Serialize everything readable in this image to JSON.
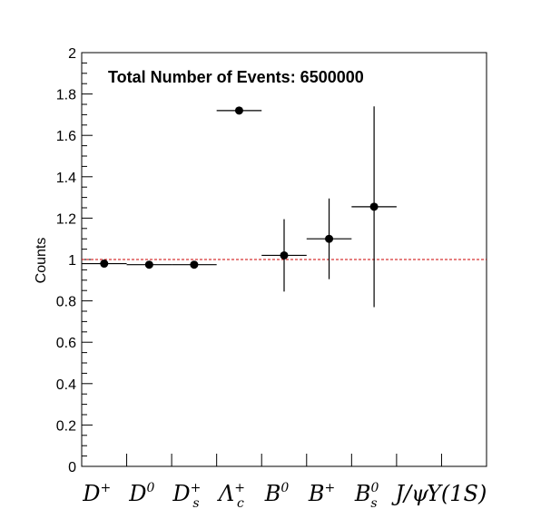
{
  "chart_data": {
    "type": "scatter",
    "title": "Total Number of Events: 6500000",
    "xlabel": "",
    "ylabel": "Counts",
    "ylim": [
      0,
      2
    ],
    "y_ticks": [
      "0",
      "0.2",
      "0.4",
      "0.6",
      "0.8",
      "1",
      "1.2",
      "1.4",
      "1.6",
      "1.8",
      "2"
    ],
    "categories": [
      {
        "base": "D",
        "sup": "+",
        "sub": ""
      },
      {
        "base": "D",
        "sup": "0",
        "sub": ""
      },
      {
        "base": "D",
        "sup": "+",
        "sub": "s"
      },
      {
        "base": "Λ",
        "sup": "+",
        "sub": "c"
      },
      {
        "base": "B",
        "sup": "0",
        "sub": ""
      },
      {
        "base": "B",
        "sup": "+",
        "sub": ""
      },
      {
        "base": "B",
        "sup": "0",
        "sub": "s"
      },
      {
        "base": "J/ψ",
        "sup": "",
        "sub": ""
      },
      {
        "base": "Υ(1S)",
        "sup": "",
        "sub": ""
      }
    ],
    "points": [
      {
        "category": 0,
        "y": 0.98,
        "err": 0.0
      },
      {
        "category": 1,
        "y": 0.975,
        "err": 0.0
      },
      {
        "category": 2,
        "y": 0.975,
        "err": 0.0
      },
      {
        "category": 3,
        "y": 1.72,
        "err": 0.0
      },
      {
        "category": 4,
        "y": 1.02,
        "err": 0.175
      },
      {
        "category": 5,
        "y": 1.1,
        "err": 0.195
      },
      {
        "category": 6,
        "y": 1.255,
        "err": 0.485
      }
    ],
    "reference_line": {
      "y": 1.0,
      "color": "#cc0000",
      "style": "dashed"
    },
    "grid": false,
    "marker_color": "#000000"
  }
}
